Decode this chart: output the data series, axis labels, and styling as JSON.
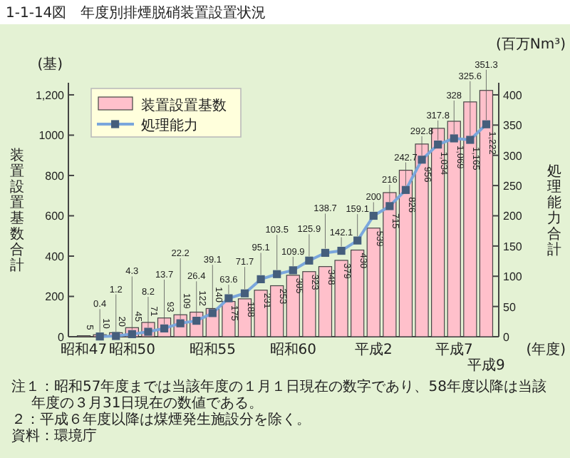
{
  "chart_data": {
    "type": "bar",
    "title": "1-1-14図　年度別排煙脱硝装置設置状況",
    "xlabel": "(年度)",
    "ylabel": "装置設置基数合計",
    "y2label": "処理能力合計",
    "annotations": [
      "(基)",
      "(百万Nm³)",
      "注１：昭和57年度までは当該年度の１月１日現在の数字であり、58年度以降は当該年度の３月31日現在の数値である。",
      "２：平成６年度以降は煤煙発生施設分を除く。",
      "資料：環境庁"
    ],
    "categories": [
      "昭和47",
      null,
      null,
      "昭和50",
      null,
      null,
      null,
      null,
      "昭和55",
      null,
      null,
      null,
      null,
      "昭和60",
      null,
      null,
      null,
      null,
      "平成2",
      null,
      null,
      null,
      null,
      "平成7",
      null,
      "平成9"
    ],
    "series": [
      {
        "name": "装置設置基数",
        "type": "bar",
        "color": "#ffc0cb",
        "values": [
          5,
          10,
          20,
          45,
          71,
          93,
          109,
          122,
          140,
          175,
          188,
          231,
          253,
          305,
          323,
          348,
          379,
          430,
          539,
          715,
          826,
          956,
          1034,
          1069,
          1165,
          1222
        ],
        "value_labels": [
          "5",
          "10",
          "20",
          "45",
          "71",
          "93",
          "109",
          "122",
          "140",
          "175",
          "188",
          "231",
          "253",
          "305",
          "323",
          "348",
          "379",
          "430",
          "539",
          "715",
          "826",
          "956",
          "1,034",
          "1,069",
          "1,165",
          "1,222"
        ]
      },
      {
        "name": "処理能力",
        "type": "line",
        "axis": "y2",
        "color": "#7aa6dc",
        "values": [
          null,
          0.4,
          1.2,
          4.3,
          8.2,
          13.7,
          22.2,
          26.4,
          39.1,
          63.6,
          71.7,
          95.1,
          103.5,
          109.9,
          125.9,
          138.7,
          142.1,
          159.1,
          200,
          216,
          242.7,
          292.8,
          317.8,
          328,
          325.6,
          351.3
        ],
        "value_labels": [
          null,
          "0.4",
          "1.2",
          "4.3",
          "8.2",
          "13.7",
          "22.2",
          "26.4",
          "39.1",
          "63.6",
          "71.7",
          "95.1",
          "103.5",
          "109.9",
          "125.9",
          "138.7",
          "142.1",
          "159.1",
          "200",
          "216",
          "242.7",
          "292.8",
          "317.8",
          "328",
          "325.6",
          "351.3"
        ]
      }
    ],
    "ylim": [
      0,
      1260
    ],
    "yticks": [
      0,
      200,
      400,
      600,
      800,
      1000,
      {
        "value": 1200,
        "label": "1,200"
      }
    ],
    "y2lim": [
      0,
      420
    ],
    "y2ticks": [
      0,
      50,
      100,
      150,
      200,
      250,
      300,
      350,
      400
    ],
    "legend": "top left",
    "marker": "square",
    "grid": false
  }
}
